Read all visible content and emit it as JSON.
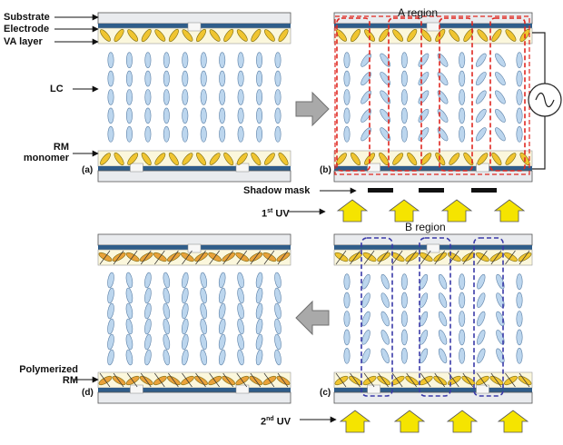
{
  "labels": {
    "substrate": "Substrate",
    "electrode": "Electrode",
    "va_layer": "VA layer",
    "lc": "LC",
    "rm_monomer_line1": "RM",
    "rm_monomer_line2": "monomer",
    "shadow_mask": "Shadow mask",
    "first_uv_prefix": "1",
    "first_uv_sup": "st",
    "first_uv_suffix": " UV",
    "second_uv_prefix": "2",
    "second_uv_sup": "nd",
    "second_uv_suffix": " UV",
    "a_region": "A region",
    "b_region": "B region",
    "polymerized_rm_line1": "Polymerized",
    "polymerized_rm_line2": "RM"
  },
  "panels": [
    {
      "id": "a",
      "label": "(a)"
    },
    {
      "id": "b",
      "label": "(b)"
    },
    {
      "id": "c",
      "label": "(c)"
    },
    {
      "id": "d",
      "label": "(d)"
    }
  ],
  "colors": {
    "substrate": "#e9ebee",
    "electrode": "#2f5d8a",
    "va_layer": "#fbf7dc",
    "lc_fill": "#bcd6ee",
    "lc_stroke": "#5a7fa6",
    "rm": "#f0c530",
    "rm_polymerized": "#e9a23a",
    "region_a": "#e0261f",
    "region_b": "#3a3aa8",
    "uv_arrow": "#f5e400",
    "process_arrow": "#a9a9a9"
  }
}
